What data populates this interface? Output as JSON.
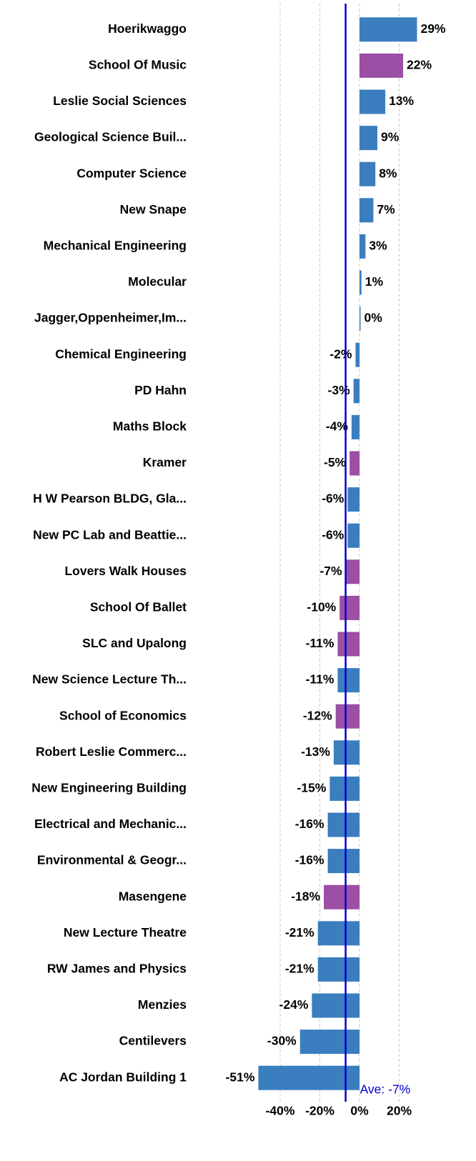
{
  "chart_data": {
    "type": "hbar",
    "categories": [
      "Hoerikwaggo",
      "School Of Music",
      "Leslie Social Sciences",
      "Geological Science Buil...",
      "Computer Science",
      "New Snape",
      "Mechanical Engineering",
      "Molecular",
      "Jagger,Oppenheimer,Im...",
      "Chemical Engineering",
      "PD Hahn",
      "Maths Block",
      "Kramer",
      "H W Pearson BLDG, Gla...",
      "New PC Lab and Beattie...",
      "Lovers Walk Houses",
      "School Of Ballet",
      "SLC and Upalong",
      "New Science Lecture Th...",
      "School of Economics",
      "Robert Leslie Commerc...",
      "New Engineering Building",
      "Electrical and Mechanic...",
      "Environmental & Geogr...",
      "Masengene",
      "New Lecture Theatre",
      "RW James and Physics",
      "Menzies",
      "Centilevers",
      "AC Jordan Building 1"
    ],
    "values": [
      29,
      22,
      13,
      9,
      8,
      7,
      3,
      1,
      0.3,
      -2,
      -3,
      -4,
      -5,
      -6,
      -6,
      -7,
      -10,
      -11,
      -11,
      -12,
      -13,
      -15,
      -16,
      -16,
      -18,
      -21,
      -21,
      -24,
      -30,
      -51
    ],
    "value_labels": [
      "29%",
      "22%",
      "13%",
      "9%",
      "8%",
      "7%",
      "3%",
      "1%",
      "0%",
      "-2%",
      "-3%",
      "-4%",
      "-5%",
      "-6%",
      "-6%",
      "-7%",
      "-10%",
      "-11%",
      "-11%",
      "-12%",
      "-13%",
      "-15%",
      "-16%",
      "-16%",
      "-18%",
      "-21%",
      "-21%",
      "-24%",
      "-30%",
      "-51%"
    ],
    "colors": [
      "#3a7ebf",
      "#9b4fa5",
      "#3a7ebf",
      "#3a7ebf",
      "#3a7ebf",
      "#3a7ebf",
      "#3a7ebf",
      "#3a7ebf",
      "#3a7ebf",
      "#3a7ebf",
      "#3a7ebf",
      "#3a7ebf",
      "#9b4fa5",
      "#3a7ebf",
      "#3a7ebf",
      "#9b4fa5",
      "#9b4fa5",
      "#9b4fa5",
      "#3a7ebf",
      "#9b4fa5",
      "#3a7ebf",
      "#3a7ebf",
      "#3a7ebf",
      "#3a7ebf",
      "#9b4fa5",
      "#3a7ebf",
      "#3a7ebf",
      "#3a7ebf",
      "#3a7ebf",
      "#3a7ebf"
    ],
    "xlim": [
      -80,
      40
    ],
    "xticks": [
      {
        "value": -40,
        "label": "-40%"
      },
      {
        "value": -20,
        "label": "-20%"
      },
      {
        "value": 0,
        "label": "0%"
      },
      {
        "value": 20,
        "label": "20%"
      }
    ],
    "grid": true,
    "average": -7,
    "average_label": "Ave: -7%",
    "average_color": "#0000cc"
  }
}
